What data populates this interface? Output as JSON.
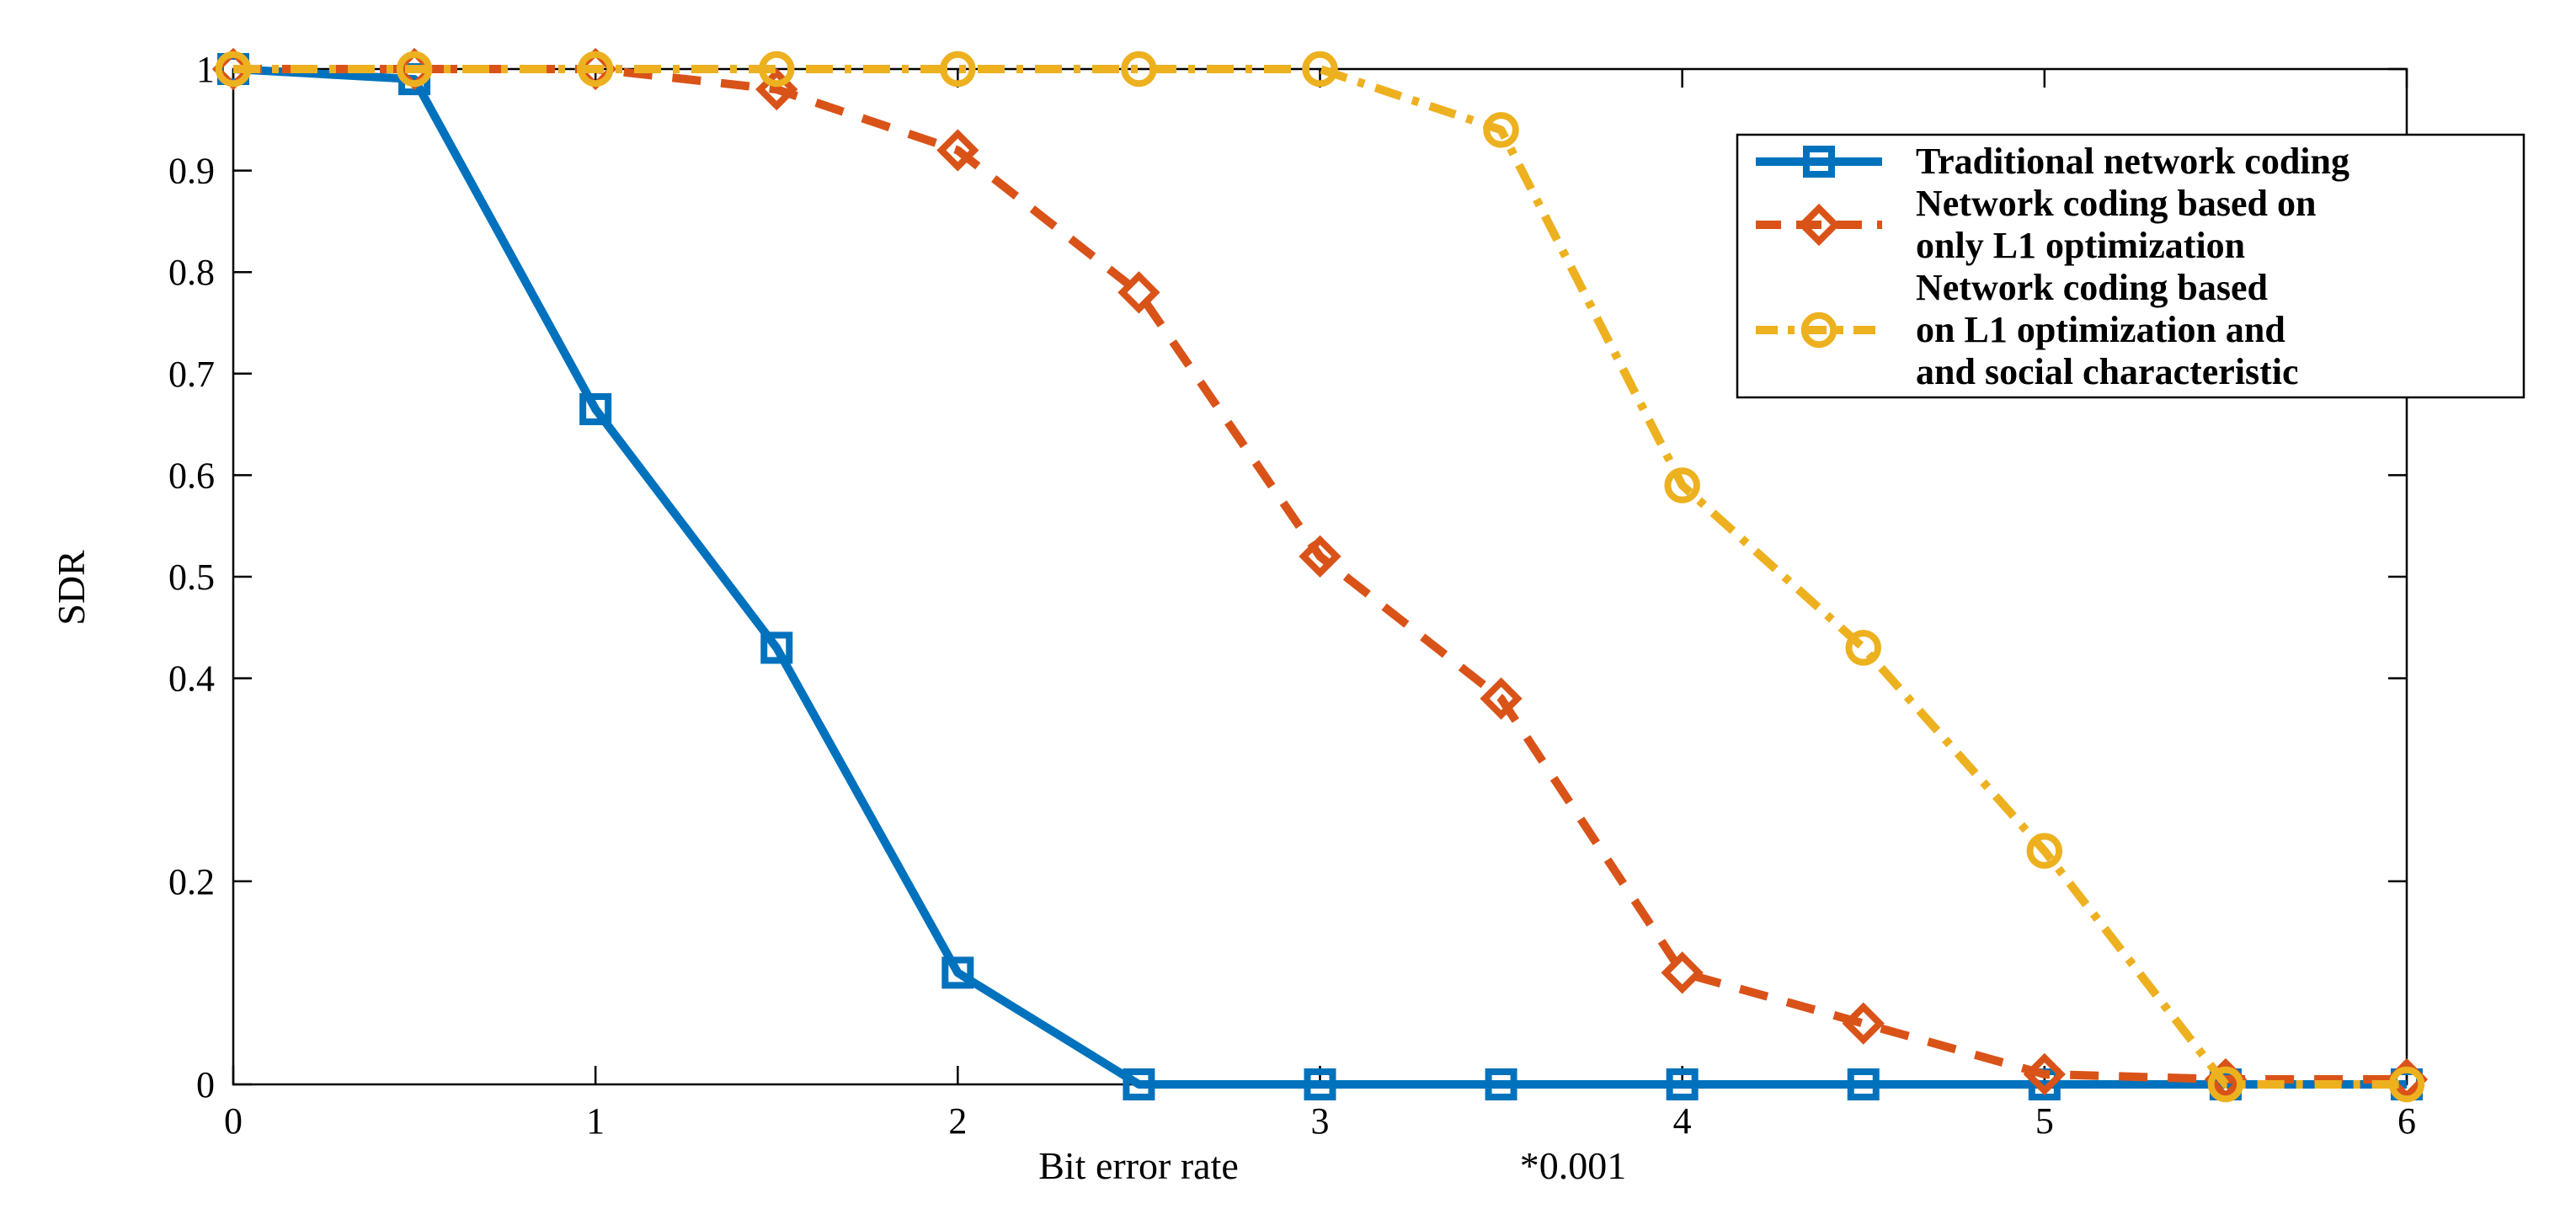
{
  "chart_data": {
    "type": "line",
    "title": "",
    "xlabel": "Bit error rate",
    "xlabel_suffix": "*0.001",
    "ylabel": "SDR",
    "xlim": [
      0,
      6
    ],
    "ylim": [
      0,
      1
    ],
    "xticks": [
      0,
      1,
      2,
      3,
      4,
      5,
      6
    ],
    "xtick_labels": [
      "0",
      "1",
      "2",
      "3",
      "4",
      "5",
      "6"
    ],
    "yticks": [
      0,
      0.2,
      0.4,
      0.5,
      0.6,
      0.7,
      0.8,
      0.9,
      1
    ],
    "ytick_labels": [
      "0",
      "0.2",
      "0.4",
      "0.5",
      "0.6",
      "0.7",
      "0.8",
      "0.9",
      "1"
    ],
    "legend_position": "top-right",
    "series": [
      {
        "name": "Traditional network coding",
        "legend_lines": [
          "Traditional network coding"
        ],
        "color": "#0072BD",
        "style": "solid",
        "marker": "square",
        "x": [
          0,
          0.5,
          1,
          1.5,
          2,
          2.5,
          3,
          3.5,
          4,
          4.5,
          5,
          5.5,
          6
        ],
        "y": [
          1.0,
          0.99,
          0.665,
          0.43,
          0.11,
          0.0,
          0.0,
          0.0,
          0.0,
          0.0,
          0.0,
          0.0,
          0.0
        ]
      },
      {
        "name": "Network coding based on only L1 optimization",
        "legend_lines": [
          "Network coding based on",
          "only L1 optimization"
        ],
        "color": "#D95319",
        "style": "dashed",
        "marker": "diamond",
        "x": [
          0,
          0.5,
          1,
          1.5,
          2,
          2.5,
          3,
          3.5,
          4,
          4.5,
          5,
          5.5,
          6
        ],
        "y": [
          1.0,
          1.0,
          1.0,
          0.98,
          0.92,
          0.78,
          0.52,
          0.38,
          0.11,
          0.06,
          0.01,
          0.005,
          0.005
        ]
      },
      {
        "name": "Network coding based on L1 optimization and and social characteristic",
        "legend_lines": [
          "Network coding based",
          "on L1 optimization and",
          "and social characteristic"
        ],
        "color": "#EDB120",
        "style": "dashdot",
        "marker": "circle",
        "x": [
          0,
          0.5,
          1,
          1.5,
          2,
          2.5,
          3,
          3.5,
          4,
          4.5,
          5,
          5.5,
          6
        ],
        "y": [
          1.0,
          1.0,
          1.0,
          1.0,
          1.0,
          1.0,
          1.0,
          0.94,
          0.59,
          0.43,
          0.23,
          0.0,
          0.0
        ]
      }
    ]
  }
}
